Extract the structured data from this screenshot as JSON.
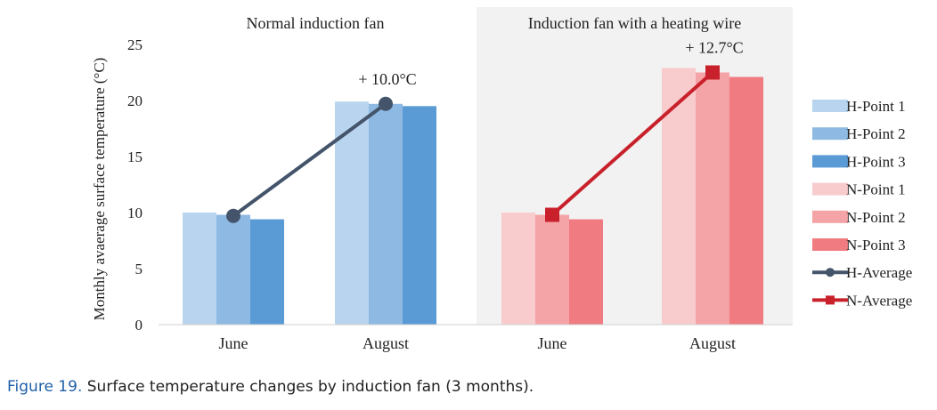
{
  "chart_data": {
    "type": "bar",
    "ylabel": "Monthly avaerage surface temperature (°C)",
    "ylim": [
      0,
      25
    ],
    "yticks": [
      0,
      5,
      10,
      15,
      20,
      25
    ],
    "gridlines": false,
    "legend_position": "right",
    "panels": [
      {
        "title": "Normal induction fan",
        "categories": [
          "June",
          "August"
        ],
        "series": [
          {
            "name": "H-Point 1",
            "values": [
              10.0,
              19.9
            ],
            "color": "#b8d4ee"
          },
          {
            "name": "H-Point 2",
            "values": [
              9.8,
              19.7
            ],
            "color": "#8db9e3"
          },
          {
            "name": "H-Point 3",
            "values": [
              9.4,
              19.5
            ],
            "color": "#5b9bd5"
          }
        ],
        "average": {
          "name": "H-Average",
          "values": [
            9.7,
            19.7
          ],
          "color": "#44546a",
          "marker": "circle"
        },
        "annotation": "+ 10.0°C"
      },
      {
        "title": "Induction fan with a heating wire",
        "categories": [
          "June",
          "August"
        ],
        "series": [
          {
            "name": "N-Point 1",
            "values": [
              10.0,
              22.9
            ],
            "color": "#f8cbcd"
          },
          {
            "name": "N-Point 2",
            "values": [
              9.8,
              22.5
            ],
            "color": "#f4a3a6"
          },
          {
            "name": "N-Point 3",
            "values": [
              9.4,
              22.1
            ],
            "color": "#f07b80"
          }
        ],
        "average": {
          "name": "N-Average",
          "values": [
            9.8,
            22.5
          ],
          "color": "#c9212b",
          "marker": "square"
        },
        "annotation": "+ 12.7°C"
      }
    ],
    "legend": [
      {
        "name": "H-Point 1",
        "kind": "bar",
        "color": "#b8d4ee"
      },
      {
        "name": "H-Point 2",
        "kind": "bar",
        "color": "#8db9e3"
      },
      {
        "name": "H-Point 3",
        "kind": "bar",
        "color": "#5b9bd5"
      },
      {
        "name": "N-Point 1",
        "kind": "bar",
        "color": "#f8cbcd"
      },
      {
        "name": "N-Point 2",
        "kind": "bar",
        "color": "#f4a3a6"
      },
      {
        "name": "N-Point 3",
        "kind": "bar",
        "color": "#f07b80"
      },
      {
        "name": "H-Average",
        "kind": "line-circle",
        "color": "#44546a"
      },
      {
        "name": "N-Average",
        "kind": "line-square",
        "color": "#c9212b"
      }
    ]
  },
  "caption": {
    "figure_label": "Figure 19.",
    "text": " Surface temperature changes by induction fan (3 months)."
  }
}
